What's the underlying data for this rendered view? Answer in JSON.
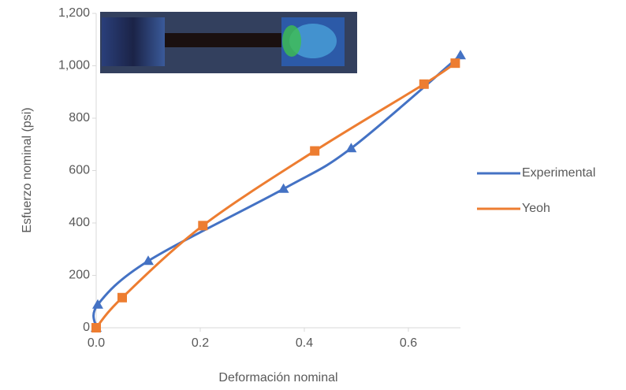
{
  "chart_data": {
    "type": "line",
    "x_label": "Deformación nominal",
    "y_label": "Esfuerzo nominal (psi)",
    "xlim": [
      0,
      0.7
    ],
    "xticks": [
      {
        "value": 0,
        "label": "0.0"
      },
      0.2,
      0.4,
      0.6
    ],
    "ylim": [
      0,
      1200
    ],
    "yticks": [
      0,
      200,
      400,
      600,
      800,
      {
        "value": 1000,
        "label": "1,000"
      },
      {
        "value": 1200,
        "label": "1,200"
      }
    ],
    "grid": false,
    "legend": "right",
    "series": [
      {
        "name": "Experimental",
        "color": "#4472c4",
        "marker": "triangle",
        "x": [
          0,
          0.003,
          0.1,
          0.36,
          0.49,
          0.7
        ],
        "values": [
          0,
          88,
          255,
          530,
          685,
          1040
        ]
      },
      {
        "name": "Yeoh",
        "color": "#ed7d31",
        "marker": "square",
        "x": [
          0,
          0.05,
          0.205,
          0.42,
          0.63,
          0.69
        ],
        "values": [
          0,
          115,
          390,
          675,
          930,
          1010
        ]
      }
    ]
  }
}
